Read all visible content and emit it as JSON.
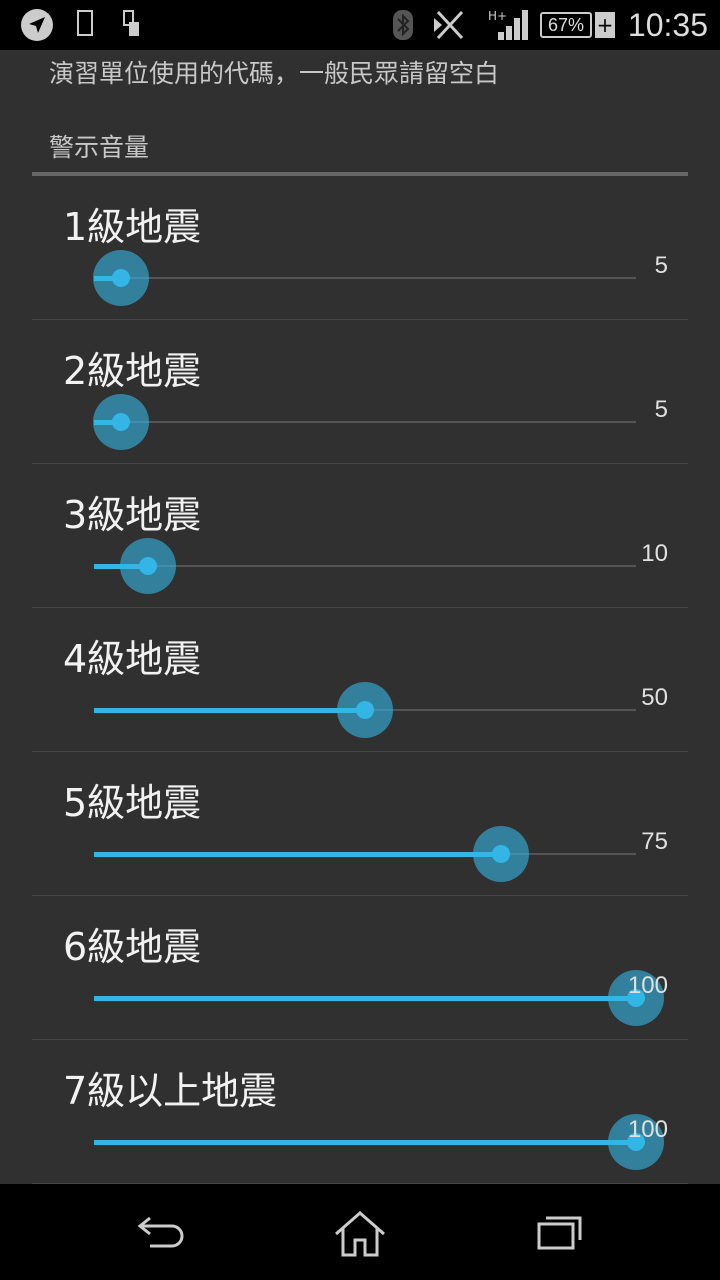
{
  "status_bar": {
    "time": "10:35",
    "battery": "67%",
    "network": "H+",
    "icons": [
      "navigation-icon",
      "phone-icon",
      "sd-card-icon",
      "bluetooth-icon",
      "nfc-icon",
      "signal-icon",
      "battery-charging-icon"
    ]
  },
  "hint": "演習單位使用的代碼，一般民眾請留空白",
  "category": "警示音量",
  "sliders": [
    {
      "label": "1級地震",
      "value": 5
    },
    {
      "label": "2級地震",
      "value": 5
    },
    {
      "label": "3級地震",
      "value": 10
    },
    {
      "label": "4級地震",
      "value": 50
    },
    {
      "label": "5級地震",
      "value": 75
    },
    {
      "label": "6級地震",
      "value": 100
    },
    {
      "label": "7級以上地震",
      "value": 100
    }
  ],
  "slider_max": 100,
  "accent": "#33b5e5",
  "nav": [
    "back-icon",
    "home-icon",
    "recent-apps-icon"
  ]
}
